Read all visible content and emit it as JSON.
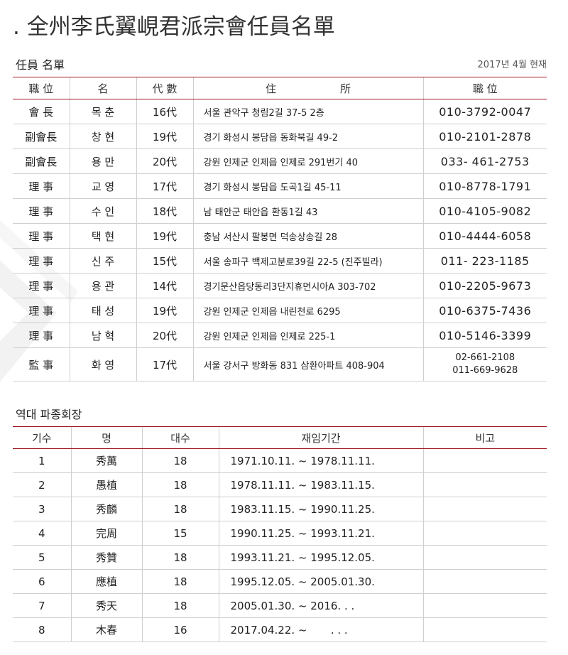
{
  "title": ". 全州李氏翼峴君派宗會任員名單",
  "officers": {
    "heading": "任員 名單",
    "as_of": "2017년 4월 현재",
    "headers": [
      "職 位",
      "名",
      "代 數",
      "住 所",
      "職 位"
    ],
    "rows": [
      [
        "會 長",
        "목 춘",
        "16代",
        "서울 관악구 청림2길 37-5 2층",
        "010-3792-0047"
      ],
      [
        "副會長",
        "창 현",
        "19代",
        "경기 화성시 봉담읍 동화북길 49-2",
        "010-2101-2878"
      ],
      [
        "副會長",
        "용 만",
        "20代",
        "강원 인제군 인제읍 인제로 291번기 40",
        "033- 461-2753"
      ],
      [
        "理 事",
        "교 영",
        "17代",
        "경기 화성시 봉담읍 도곡1길 45-11",
        "010-8778-1791"
      ],
      [
        "理 事",
        "수 인",
        "18代",
        "남 태안군 태안읍 환동1길 43",
        "010-4105-9082"
      ],
      [
        "理 事",
        "택 현",
        "19代",
        "충남 서산시 팔봉면 덕송상송길 28",
        "010-4444-6058"
      ],
      [
        "理 事",
        "신 주",
        "15代",
        "서울 송파구 백제고분로39길 22-5 (진주빌라)",
        "011- 223-1185"
      ],
      [
        "理 事",
        "용 관",
        "14代",
        "경기문산읍당동리3단지휴먼시아A 303-702",
        "010-2205-9673"
      ],
      [
        "理 事",
        "태 성",
        "19代",
        "강원 인제군 인제읍 내린천로 6295",
        "010-6375-7436"
      ],
      [
        "理 事",
        "남 혁",
        "20代",
        "강원 인제군 인제읍 인제로 225-1",
        "010-5146-3399"
      ]
    ],
    "last_row": {
      "position": "監 事",
      "name": "화 영",
      "generation": "17代",
      "address": "서울 강서구 방화동 831 삼환아파트 408-904",
      "phone1": "02-661-2108",
      "phone2": "011-669-9628"
    }
  },
  "presidents": {
    "heading": "역대 파종회장",
    "headers": [
      "기수",
      "명",
      "대수",
      "재임기간",
      "비고"
    ],
    "rows": [
      [
        "1",
        "秀萬",
        "18",
        "1971.10.11. ~ 1978.11.11.",
        ""
      ],
      [
        "2",
        "愚植",
        "18",
        "1978.11.11. ~ 1983.11.15.",
        ""
      ],
      [
        "3",
        "秀麟",
        "18",
        "1983.11.15. ~ 1990.11.25.",
        ""
      ],
      [
        "4",
        "完周",
        "15",
        "1990.11.25. ~ 1993.11.21.",
        ""
      ],
      [
        "5",
        "秀贊",
        "18",
        "1993.11.21. ~ 1995.12.05.",
        ""
      ],
      [
        "6",
        "應植",
        "18",
        "1995.12.05. ~ 2005.01.30.",
        ""
      ],
      [
        "7",
        "秀天",
        "18",
        "2005.01.30. ~ 2016. . .",
        ""
      ],
      [
        "8",
        "木春",
        "16",
        "2017.04.22. ~       . . .",
        ""
      ]
    ]
  }
}
